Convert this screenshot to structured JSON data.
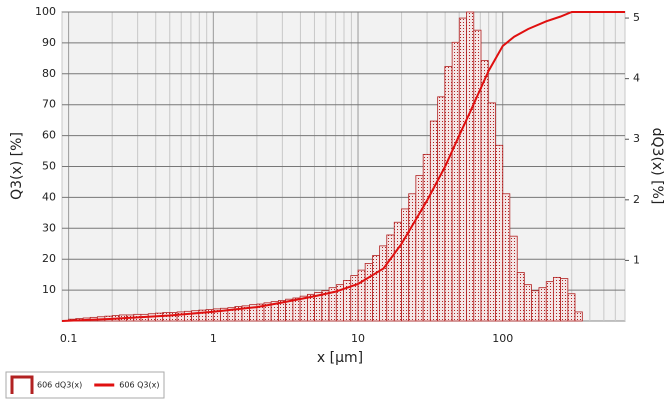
{
  "chart_data": {
    "type": "combo",
    "x_label": "x [µm]",
    "y_label": "Q3(x) [%]",
    "y2_label": "dQ3(x) [%]",
    "xscale": "log",
    "xlim": [
      0.09,
      700
    ],
    "xticks": [
      {
        "value": 0.1,
        "label": "0.1"
      },
      1,
      10,
      100
    ],
    "ylim": [
      0,
      100
    ],
    "yticks": [
      10,
      20,
      30,
      40,
      50,
      60,
      70,
      80,
      90,
      100
    ],
    "y2lim": [
      0,
      5.1
    ],
    "y2ticks": [
      1,
      2,
      3,
      4,
      5
    ],
    "grid": true,
    "minor_grid": true,
    "legend": "bottom-left",
    "series": [
      {
        "name": "606 dQ3(x)",
        "type": "histogram",
        "axis": "y2",
        "color": "#b22222",
        "bins": [
          0.1,
          0.112,
          0.126,
          0.141,
          0.158,
          0.178,
          0.2,
          0.224,
          0.251,
          0.282,
          0.316,
          0.355,
          0.398,
          0.447,
          0.501,
          0.562,
          0.631,
          0.708,
          0.794,
          0.891,
          1,
          1.12,
          1.26,
          1.41,
          1.58,
          1.78,
          2,
          2.24,
          2.51,
          2.82,
          3.16,
          3.55,
          3.98,
          4.47,
          5.01,
          5.62,
          6.31,
          7.08,
          7.94,
          8.91,
          10,
          11.2,
          12.6,
          14.1,
          15.8,
          17.8,
          20,
          22.4,
          25.1,
          28.2,
          31.6,
          35.5,
          39.8,
          44.7,
          50.1,
          56.2,
          63.1,
          70.8,
          79.4,
          89.1,
          100,
          112,
          126,
          141,
          158,
          178,
          200,
          224,
          251,
          282,
          316,
          355
        ],
        "values": [
          0.03,
          0.04,
          0.05,
          0.06,
          0.07,
          0.08,
          0.09,
          0.1,
          0.1,
          0.11,
          0.11,
          0.12,
          0.13,
          0.14,
          0.14,
          0.15,
          0.16,
          0.17,
          0.18,
          0.19,
          0.2,
          0.21,
          0.22,
          0.24,
          0.25,
          0.27,
          0.28,
          0.3,
          0.32,
          0.34,
          0.36,
          0.38,
          0.41,
          0.44,
          0.47,
          0.5,
          0.55,
          0.6,
          0.67,
          0.75,
          0.84,
          0.95,
          1.08,
          1.24,
          1.42,
          1.63,
          1.85,
          2.1,
          2.4,
          2.75,
          3.3,
          3.7,
          4.2,
          4.6,
          5.0,
          5.1,
          4.8,
          4.3,
          3.6,
          2.9,
          2.1,
          1.4,
          0.8,
          0.6,
          0.5,
          0.55,
          0.65,
          0.72,
          0.7,
          0.45,
          0.15
        ]
      },
      {
        "name": "606 Q3(x)",
        "type": "line",
        "color": "#e01010",
        "x": [
          0.09,
          0.2,
          0.5,
          1,
          2,
          3,
          5,
          7,
          10,
          15,
          20,
          30,
          40,
          50,
          60,
          70,
          80,
          100,
          120,
          150,
          200,
          250,
          300,
          350,
          700
        ],
        "values": [
          0,
          0.7,
          1.8,
          3,
          4.5,
          6,
          8,
          9.5,
          12,
          17,
          25,
          39,
          50,
          60,
          68,
          75,
          81,
          89,
          92,
          94.5,
          97,
          98.5,
          100,
          100,
          100
        ]
      }
    ]
  }
}
